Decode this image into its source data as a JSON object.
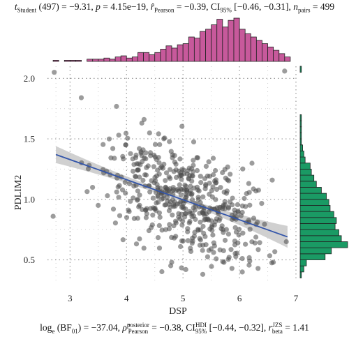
{
  "stats_top": {
    "t_symbol": "t",
    "t_sub": "Student",
    "t_text": " (497) = −9.31, ",
    "p_symbol": "p",
    "p_text": " = 4.15e−19, ",
    "r_symbol": "r̂",
    "r_sub": "Pearson",
    "r_text": " = −0.39, CI",
    "ci_sub": "95%",
    "ci_text": " [−0.46, −0.31], ",
    "n_symbol": "n",
    "n_sub": "pairs",
    "n_text": " = 499"
  },
  "stats_bottom": {
    "log_text": "log",
    "log_sub": "e",
    "bf_text": " (BF",
    "bf_sub": "01",
    "bf_val": ") = −37.04, ",
    "rho_symbol": "ρ̂",
    "rho_sup": "posterior",
    "rho_sub": "Pearson",
    "rho_text": " = −0.38, CI",
    "ci_sup": "HDI",
    "ci_sub": "95%",
    "ci_text": " [−0.44, −0.32], ",
    "r_symbol": "r",
    "r_sup": "JZS",
    "r_sub": "beta",
    "r_text": " = 1.41"
  },
  "colors": {
    "points": "#4a4a4a",
    "fit_line": "#3355aa",
    "ci_band": "#c8c8c8",
    "top_hist": "#c7599b",
    "right_hist": "#1a9a64",
    "grid": "#9a9a9a"
  },
  "chart_data": {
    "type": "scatter",
    "xlabel": "DSP",
    "ylabel": "PDLIM2",
    "xlim": [
      2.6,
      7.0
    ],
    "ylim": [
      0.33,
      2.1
    ],
    "xticks": [
      "3",
      "4",
      "5",
      "6",
      "7"
    ],
    "xtick_values": [
      3,
      4,
      5,
      6,
      7
    ],
    "yticks": [
      "0.5",
      "1.0",
      "1.5",
      "2.0"
    ],
    "ytick_values": [
      0.5,
      1.0,
      1.5,
      2.0
    ],
    "grid": true,
    "fit": {
      "x": [
        2.75,
        6.85
      ],
      "y": [
        1.37,
        0.69
      ],
      "ci_half_width_ends": [
        0.07,
        0.09
      ],
      "ci_half_width_center": 0.02
    },
    "highlighted_points": [
      {
        "x": 2.72,
        "y": 2.05
      },
      {
        "x": 3.2,
        "y": 1.84
      },
      {
        "x": 6.8,
        "y": 2.06
      },
      {
        "x": 2.7,
        "y": 0.86
      },
      {
        "x": 6.83,
        "y": 0.65
      },
      {
        "x": 6.6,
        "y": 0.48
      },
      {
        "x": 5.05,
        "y": 0.42
      },
      {
        "x": 6.05,
        "y": 0.4
      },
      {
        "x": 5.35,
        "y": 0.38
      },
      {
        "x": 4.8,
        "y": 0.48
      }
    ],
    "n_points": 499,
    "top_histogram": {
      "bin_start": 2.7,
      "bin_width": 0.1,
      "counts": [
        1,
        0,
        1,
        1,
        1,
        0,
        2,
        2,
        2,
        3,
        2,
        4,
        5,
        3,
        4,
        8,
        8,
        6,
        8,
        11,
        14,
        12,
        15,
        16,
        22,
        21,
        27,
        29,
        33,
        38,
        31,
        37,
        39,
        29,
        25,
        22,
        19,
        16,
        13,
        10,
        7,
        4
      ]
    },
    "right_histogram": {
      "bin_start": 0.35,
      "bin_width": 0.05,
      "counts": [
        1,
        3,
        5,
        20,
        25,
        38,
        33,
        31,
        28,
        29,
        27,
        24,
        23,
        21,
        17,
        13,
        11,
        9,
        8,
        4,
        3,
        2,
        1,
        1,
        1,
        1,
        1,
        0,
        0,
        0,
        0,
        0,
        0,
        0,
        1
      ]
    }
  }
}
